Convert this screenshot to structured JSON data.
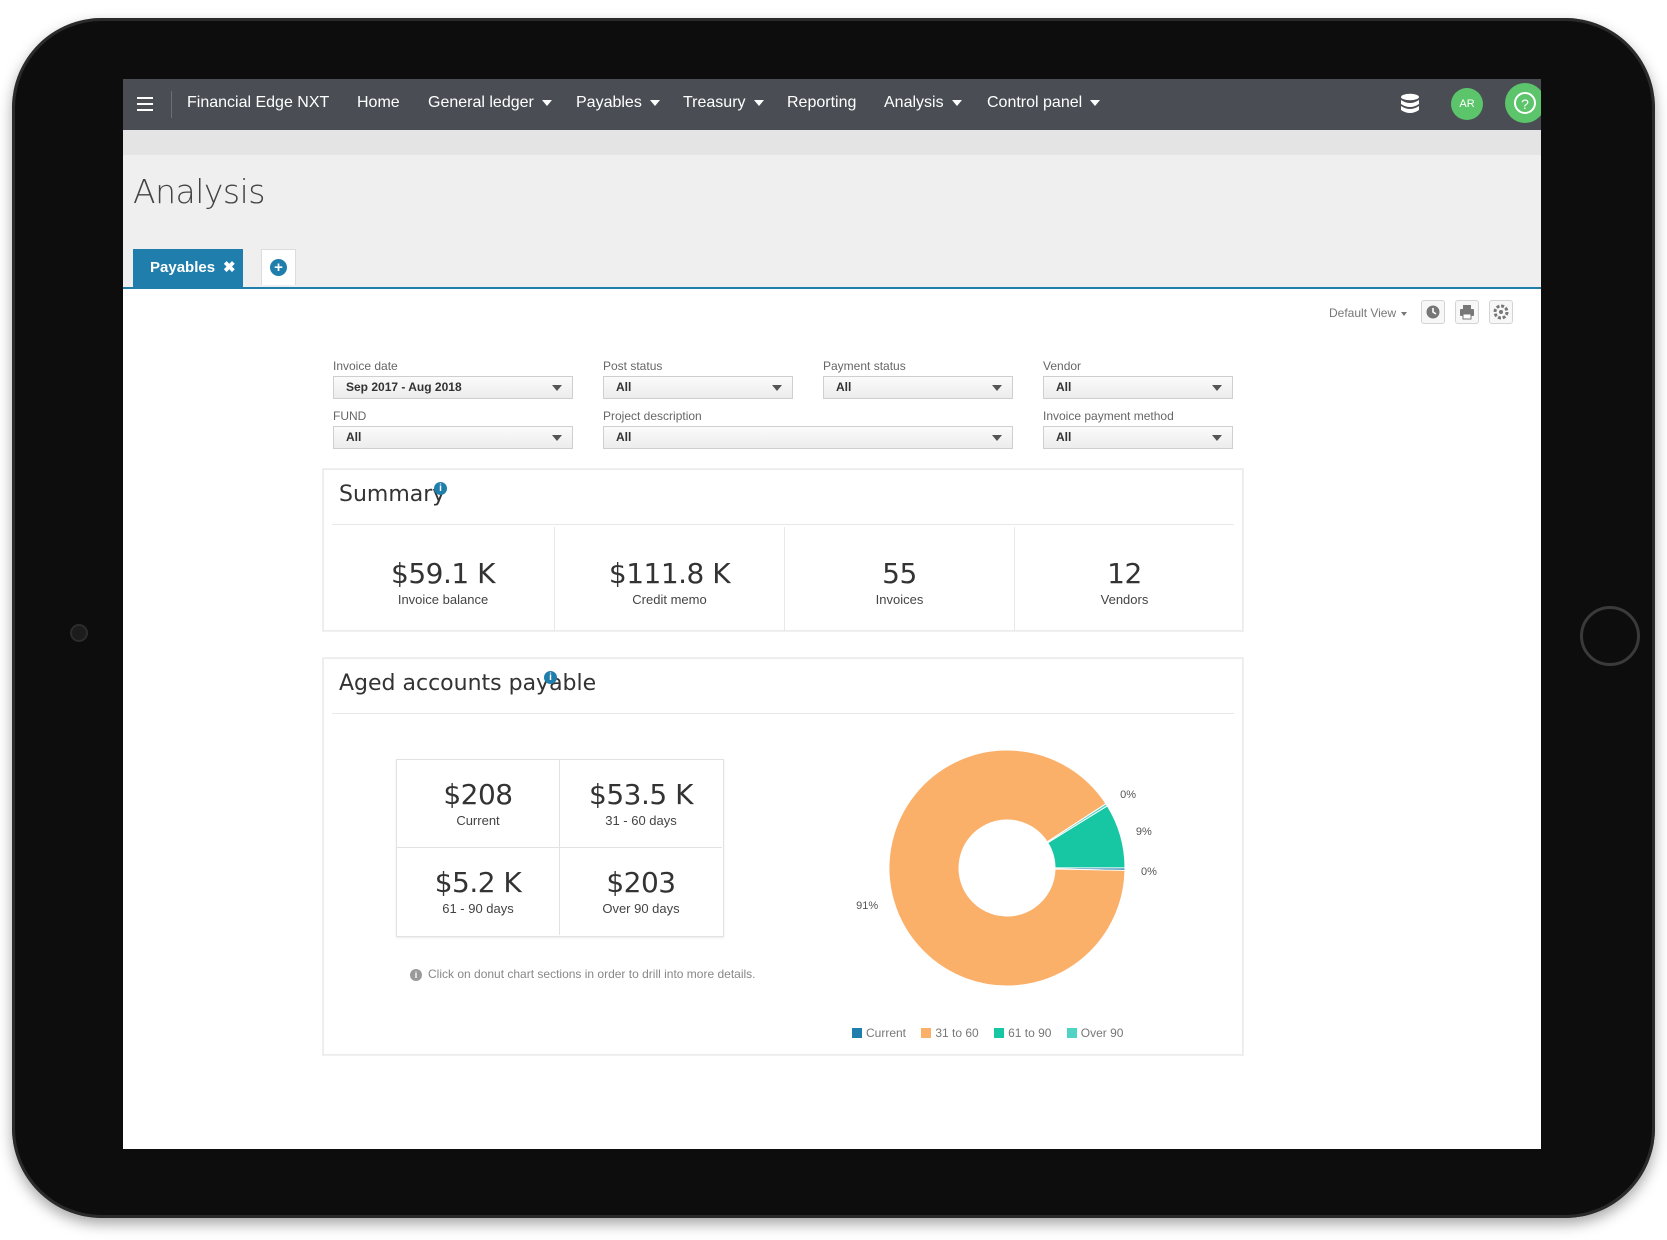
{
  "navbar": {
    "app_title": "Financial Edge NXT",
    "items": [
      {
        "label": "Home",
        "has_caret": false
      },
      {
        "label": "General ledger",
        "has_caret": true
      },
      {
        "label": "Payables",
        "has_caret": true
      },
      {
        "label": "Treasury",
        "has_caret": true
      },
      {
        "label": "Reporting",
        "has_caret": false
      },
      {
        "label": "Analysis",
        "has_caret": true
      },
      {
        "label": "Control panel",
        "has_caret": true
      }
    ],
    "avatar_initials": "AR",
    "help_glyph": "?"
  },
  "page": {
    "title": "Analysis",
    "tab_label": "Payables",
    "tab_close": "✖",
    "tab_add": "+",
    "default_view": "Default View"
  },
  "filters": {
    "invoice_date": {
      "label": "Invoice date",
      "value": "Sep 2017 - Aug 2018"
    },
    "post_status": {
      "label": "Post status",
      "value": "All"
    },
    "payment_status": {
      "label": "Payment status",
      "value": "All"
    },
    "vendor": {
      "label": "Vendor",
      "value": "All"
    },
    "fund": {
      "label": "FUND",
      "value": "All"
    },
    "project_description": {
      "label": "Project description",
      "value": "All"
    },
    "invoice_payment_method": {
      "label": "Invoice payment method",
      "value": "All"
    }
  },
  "summary": {
    "title": "Summary",
    "info_glyph": "i",
    "stats": [
      {
        "value": "$59.1 K",
        "label": "Invoice balance"
      },
      {
        "value": "$111.8 K",
        "label": "Credit memo"
      },
      {
        "value": "55",
        "label": "Invoices"
      },
      {
        "value": "12",
        "label": "Vendors"
      }
    ]
  },
  "aged": {
    "title": "Aged accounts payable",
    "info_glyph": "i",
    "cells": [
      {
        "value": "$208",
        "label": "Current"
      },
      {
        "value": "$53.5 K",
        "label": "31 - 60 days"
      },
      {
        "value": "$5.2 K",
        "label": "61 - 90 days"
      },
      {
        "value": "$203",
        "label": "Over 90 days"
      }
    ],
    "hint_glyph": "i",
    "hint": "Click on donut chart sections in order to drill into more details."
  },
  "chart_data": {
    "type": "pie",
    "donut": true,
    "categories": [
      "Current",
      "31 to 60",
      "61 to 90",
      "Over 90"
    ],
    "values": [
      208,
      53500,
      5200,
      203
    ],
    "data_labels": [
      "0%",
      "91%",
      "9%",
      "0%"
    ],
    "colors": [
      "#1f7eab",
      "#fbb06a",
      "#17c7a4",
      "#4fd3c4"
    ],
    "legend_position": "bottom"
  },
  "colors": {
    "navbar": "#4a4e54",
    "accent": "#1f7eab",
    "avatar": "#5cc46a"
  }
}
